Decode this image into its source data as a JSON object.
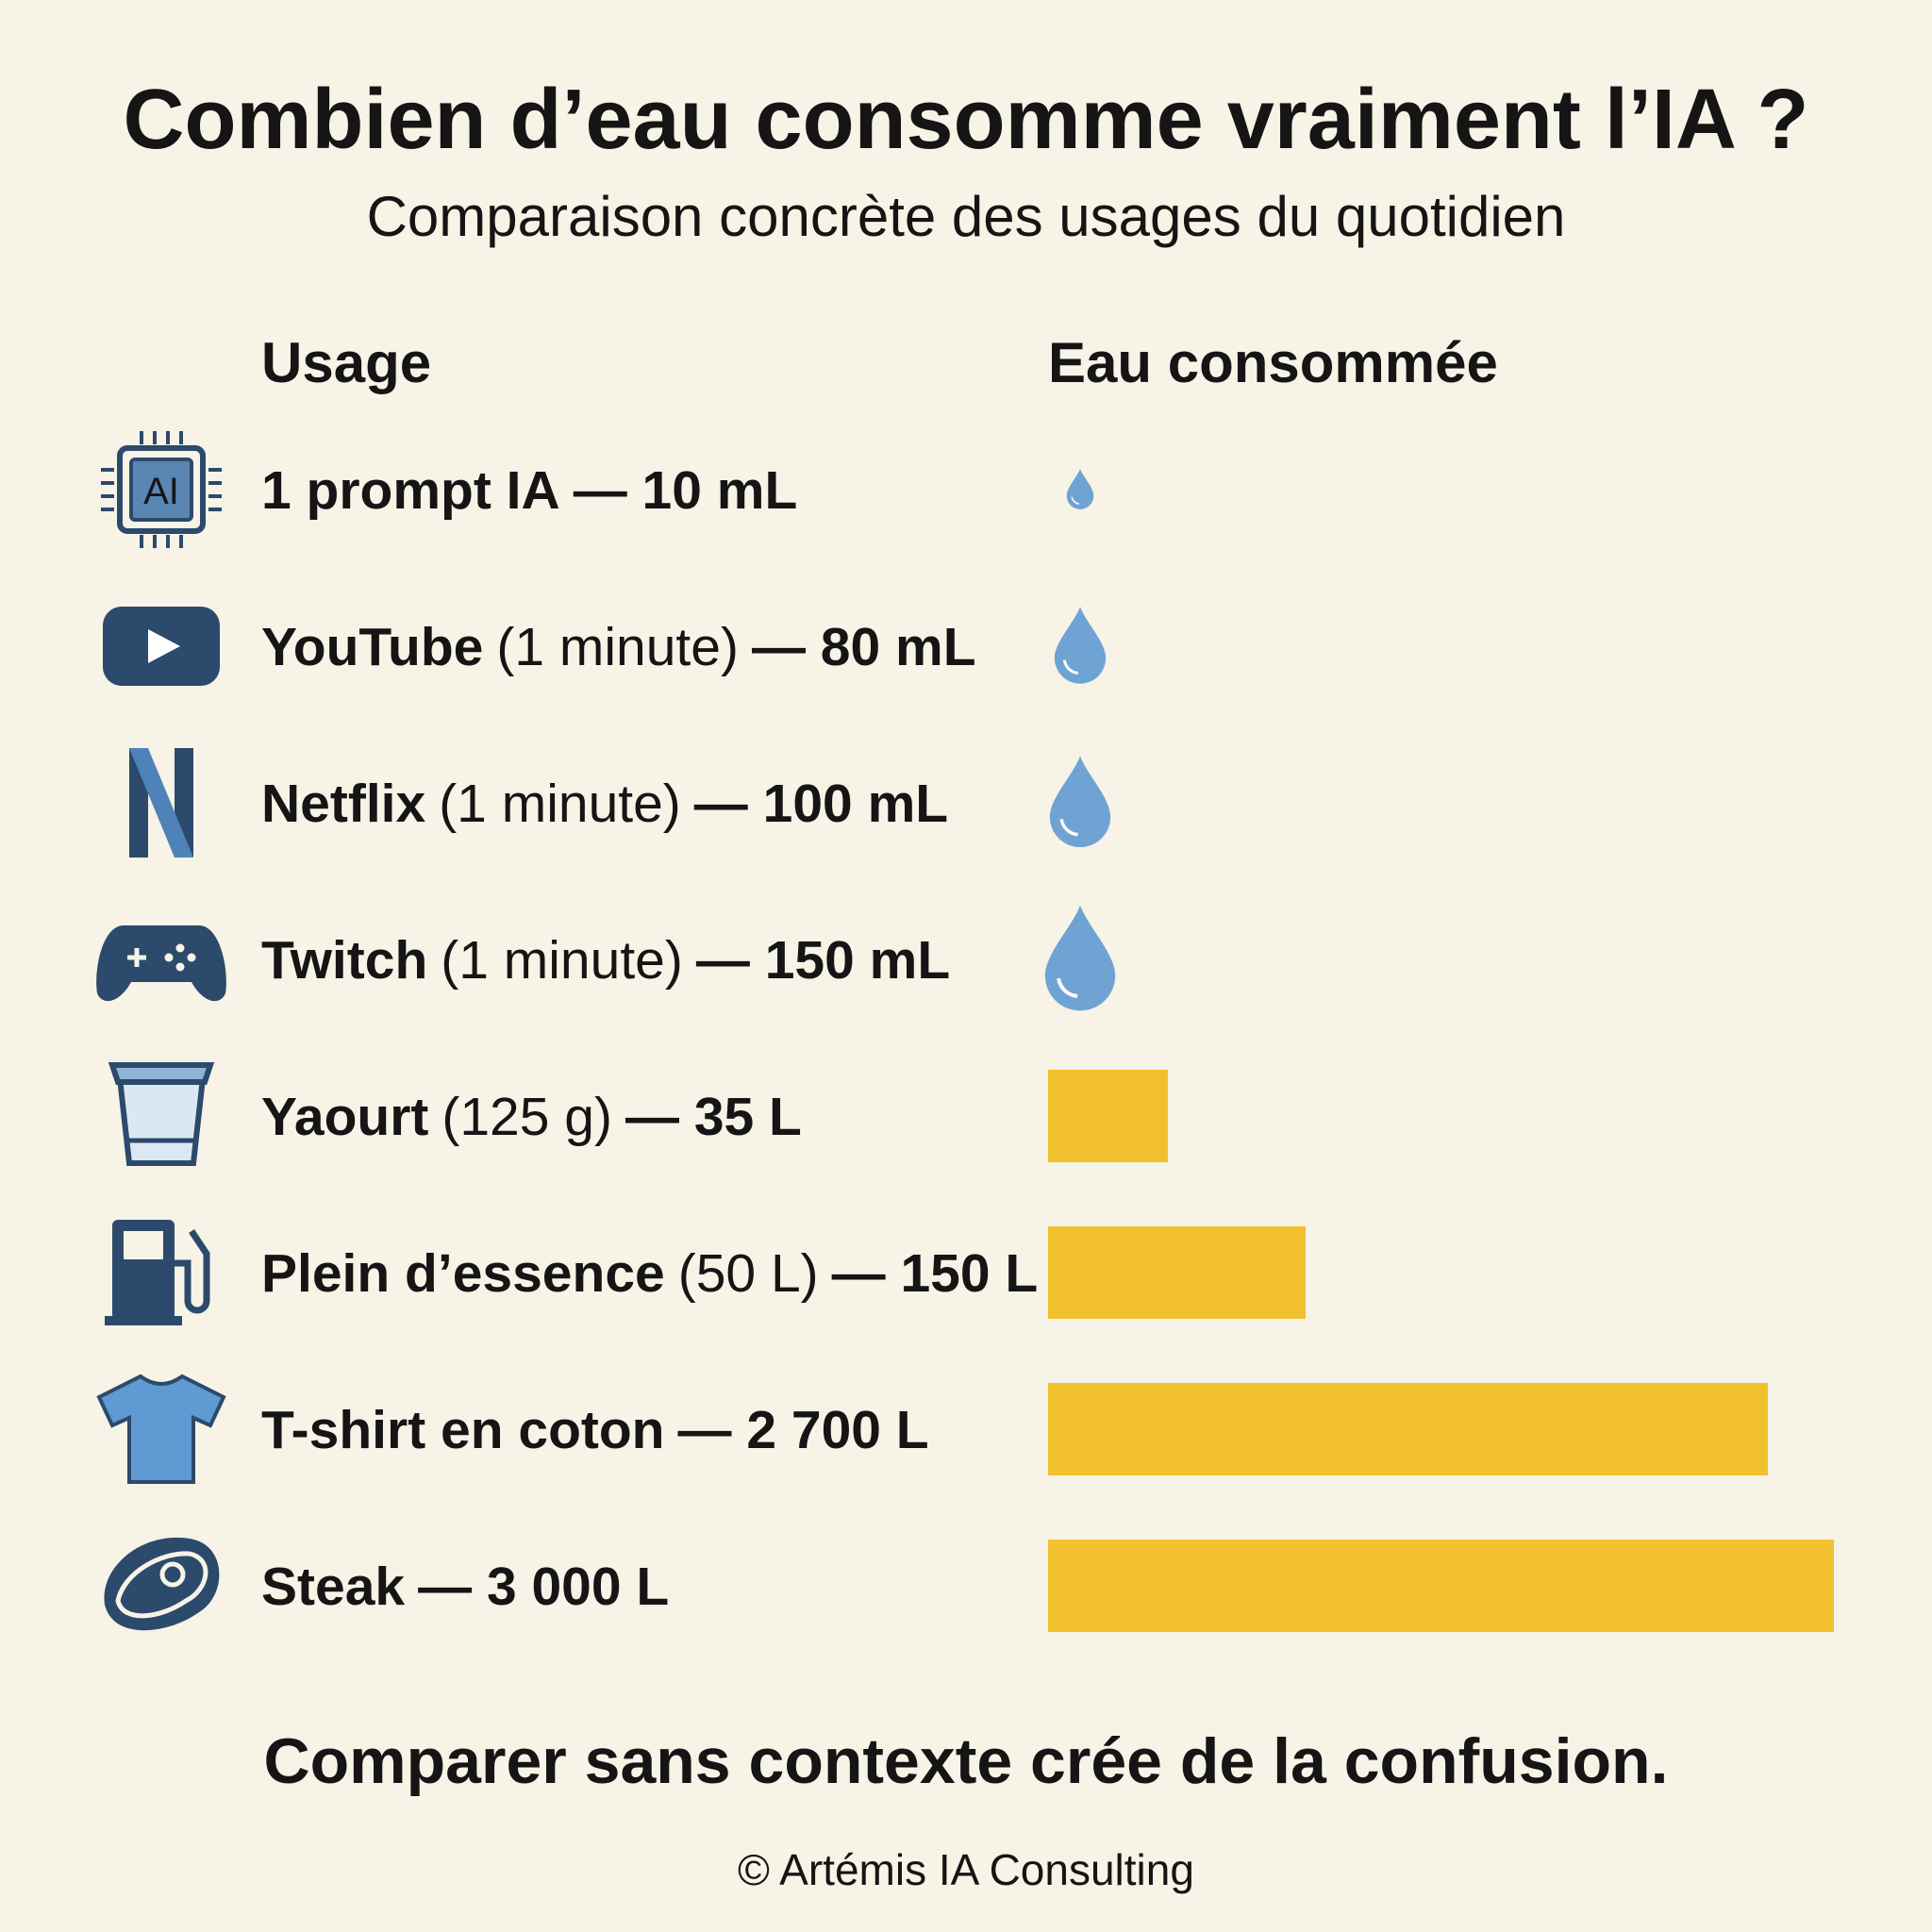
{
  "title": "Combien d’eau consomme vraiment l’IA ?",
  "subtitle": "Comparaison concrète des usages du quotidien",
  "headers": [
    "Usage",
    "Eau consommée"
  ],
  "rows": [
    {
      "icon_text": "AI",
      "name": "1 prompt IA",
      "amount": "— 10 mL"
    },
    {
      "name": "YouTube",
      "detail": "(1 minute)",
      "amount": "— 80 mL"
    },
    {
      "name": "Netflix",
      "detail": "(1 minute)",
      "amount": "— 100 mL"
    },
    {
      "name": "Twitch",
      "detail": "(1 minute)",
      "amount": "— 150 mL"
    },
    {
      "name": "Yaourt",
      "detail": "(125 g)",
      "amount": "— 35 L"
    },
    {
      "name": "Plein d’essence",
      "detail": "(50 L)",
      "amount": "— 150 L"
    },
    {
      "name": "T-shirt en coton",
      "amount": "— 2 700 L"
    },
    {
      "name": "Steak",
      "amount": "— 3 000 L"
    }
  ],
  "footer": "Comparer sans contexte crée de la confusion.",
  "credit": "© Artémis IA Consulting"
}
